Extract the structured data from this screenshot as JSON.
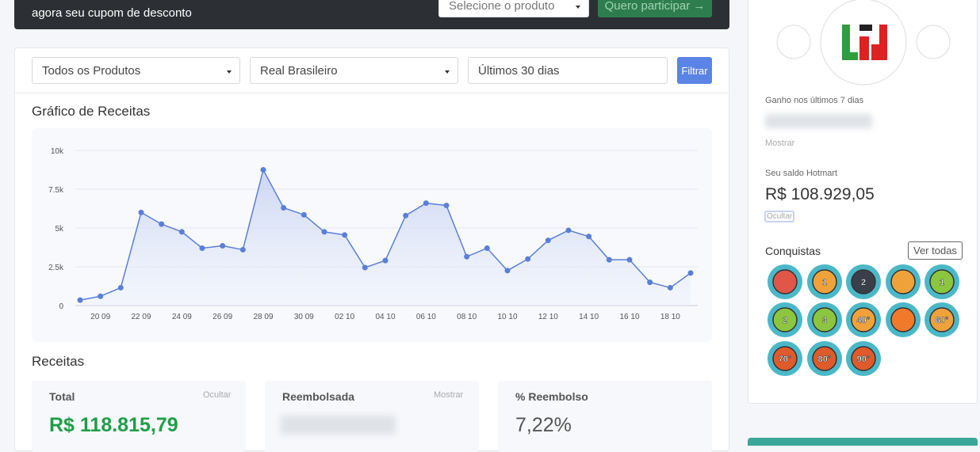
{
  "banner": {
    "text": "agora seu cupom de desconto",
    "select": "Selecione o produto",
    "button": "Quero participar →"
  },
  "filters": {
    "product": "Todos os Produtos",
    "currency": "Real Brasileiro",
    "period": "Últimos 30 dias",
    "button": "Filtrar"
  },
  "chart_section": {
    "title": "Gráfico de Receitas"
  },
  "chart_data": {
    "type": "line",
    "color": "#5b7fd6",
    "categories": [
      null,
      "20 09",
      null,
      "22 09",
      null,
      "24 09",
      null,
      "26 09",
      null,
      "28 09",
      null,
      "30 09",
      null,
      "02 10",
      null,
      "04 10",
      null,
      "06 10",
      null,
      "08 10",
      null,
      "10 10",
      null,
      "12 10",
      null,
      "14 10",
      null,
      "16 10",
      null,
      "18 10",
      null
    ],
    "values": [
      350,
      600,
      1150,
      6000,
      5250,
      4750,
      3700,
      3850,
      3600,
      8750,
      6300,
      5850,
      4750,
      4550,
      2450,
      2900,
      5800,
      6600,
      6450,
      3150,
      3700,
      2250,
      3000,
      4200,
      4850,
      4450,
      2950,
      2950,
      1500,
      1150,
      2100
    ],
    "ylim": [
      0,
      10000
    ],
    "yticks": [
      0,
      {
        "value": 2500,
        "label": "2.5k"
      },
      {
        "value": 5000,
        "label": "5k"
      },
      {
        "value": 7500,
        "label": "7.5k"
      },
      {
        "value": 10000,
        "label": "10k"
      }
    ],
    "grid": true
  },
  "revenue": {
    "title": "Receitas",
    "cards": [
      {
        "label": "Total",
        "toggle": "Ocultar",
        "value": "R$ 118.815,79"
      },
      {
        "label": "Reembolsada",
        "toggle": "Mostrar"
      },
      {
        "label": "% Reembolso",
        "value": "7,22%"
      }
    ]
  },
  "sidebar": {
    "earned_label": "Ganho nos últimos 7 dias",
    "earned_toggle": "Mostrar",
    "balance_label": "Seu saldo Hotmart",
    "balance": "R$ 108.929,05",
    "balance_toggle": "Ocultar",
    "achievements": "Conquistas",
    "see_all": "Ver todas",
    "badge_labels": [
      "1",
      "2",
      "1",
      "2",
      "3",
      "40°",
      "60°",
      "70°",
      "80°",
      "90°"
    ]
  }
}
